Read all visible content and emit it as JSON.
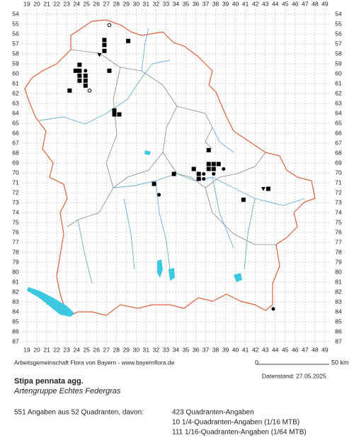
{
  "grid": {
    "columns": [
      19,
      20,
      21,
      22,
      23,
      24,
      25,
      26,
      27,
      28,
      29,
      30,
      31,
      32,
      33,
      34,
      35,
      36,
      37,
      38,
      39,
      40,
      41,
      42,
      43,
      44,
      45,
      46,
      47,
      48,
      49
    ],
    "rows": [
      54,
      55,
      56,
      57,
      58,
      59,
      60,
      61,
      62,
      63,
      64,
      65,
      66,
      67,
      68,
      69,
      70,
      71,
      72,
      73,
      74,
      75,
      76,
      77,
      78,
      79,
      80,
      81,
      82,
      83,
      84,
      85,
      86,
      87
    ]
  },
  "records": [
    {
      "col": 27.3,
      "row": 55.1,
      "symbol": "open"
    },
    {
      "col": 26.8,
      "row": 56.6,
      "symbol": "square"
    },
    {
      "col": 26.8,
      "row": 57.1,
      "symbol": "square"
    },
    {
      "col": 26.8,
      "row": 57.7,
      "symbol": "square"
    },
    {
      "col": 26.3,
      "row": 58.1,
      "symbol": "triangle"
    },
    {
      "col": 29.2,
      "row": 56.7,
      "symbol": "square"
    },
    {
      "col": 24.3,
      "row": 59.1,
      "symbol": "square"
    },
    {
      "col": 23.9,
      "row": 59.7,
      "symbol": "square"
    },
    {
      "col": 24.3,
      "row": 59.7,
      "symbol": "square"
    },
    {
      "col": 24.9,
      "row": 59.7,
      "symbol": "dot"
    },
    {
      "col": 27.3,
      "row": 59.7,
      "symbol": "square"
    },
    {
      "col": 24.3,
      "row": 60.2,
      "symbol": "square"
    },
    {
      "col": 24.9,
      "row": 60.2,
      "symbol": "square"
    },
    {
      "col": 24.3,
      "row": 60.7,
      "symbol": "square"
    },
    {
      "col": 24.9,
      "row": 60.7,
      "symbol": "square"
    },
    {
      "col": 24.9,
      "row": 61.2,
      "symbol": "square"
    },
    {
      "col": 23.3,
      "row": 61.7,
      "symbol": "square"
    },
    {
      "col": 25.3,
      "row": 61.7,
      "symbol": "open"
    },
    {
      "col": 27.8,
      "row": 63.7,
      "symbol": "square"
    },
    {
      "col": 27.8,
      "row": 64.1,
      "symbol": "square"
    },
    {
      "col": 28.3,
      "row": 64.1,
      "symbol": "square"
    },
    {
      "col": 37.3,
      "row": 67.7,
      "symbol": "square"
    },
    {
      "col": 37.3,
      "row": 69.1,
      "symbol": "square"
    },
    {
      "col": 37.8,
      "row": 69.1,
      "symbol": "square"
    },
    {
      "col": 38.3,
      "row": 69.1,
      "symbol": "square"
    },
    {
      "col": 38.8,
      "row": 69.6,
      "symbol": "dot"
    },
    {
      "col": 37.3,
      "row": 69.6,
      "symbol": "square"
    },
    {
      "col": 37.8,
      "row": 69.6,
      "symbol": "square"
    },
    {
      "col": 35.8,
      "row": 69.6,
      "symbol": "square"
    },
    {
      "col": 36.3,
      "row": 70.1,
      "symbol": "square"
    },
    {
      "col": 36.8,
      "row": 70.1,
      "symbol": "dot"
    },
    {
      "col": 37.8,
      "row": 70.1,
      "symbol": "dot"
    },
    {
      "col": 33.8,
      "row": 70.1,
      "symbol": "square"
    },
    {
      "col": 36.3,
      "row": 70.6,
      "symbol": "square"
    },
    {
      "col": 36.8,
      "row": 70.6,
      "symbol": "dot"
    },
    {
      "col": 31.8,
      "row": 71.1,
      "symbol": "square"
    },
    {
      "col": 32.3,
      "row": 72.2,
      "symbol": "dot"
    },
    {
      "col": 40.8,
      "row": 72.7,
      "symbol": "square"
    },
    {
      "col": 42.8,
      "row": 71.6,
      "symbol": "triangle"
    },
    {
      "col": 43.3,
      "row": 71.6,
      "symbol": "square"
    },
    {
      "col": 43.8,
      "row": 83.7,
      "symbol": "dot"
    }
  ],
  "credit": "Arbeitsgemeinschaft Flora von Bayern - www.bayernflora.de",
  "scale": {
    "start": "0",
    "end": "50 km"
  },
  "date": "Datenstand: 27.05.2025",
  "species": "Stipa pennata agg.",
  "group": "Artengruppe Echtes Federgras",
  "summary": "551 Angaben aus 52 Quadranten, davon:",
  "breakdown": [
    "423 Quadranten-Angaben",
    "10 1/4-Quadranten-Angaben (1/16 MTB)",
    "111 1/16-Quadranten-Angaben (1/64 MTB)"
  ]
}
